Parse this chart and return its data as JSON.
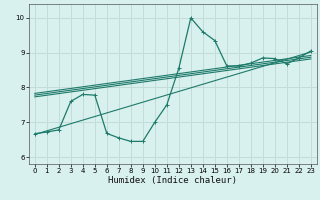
{
  "xlabel": "Humidex (Indice chaleur)",
  "ylabel": "",
  "bg_color": "#d8f0ee",
  "grid_color": "#c2dcd8",
  "line_color": "#1e7a6a",
  "xlim": [
    -0.5,
    23.5
  ],
  "ylim": [
    5.8,
    10.4
  ],
  "xticks": [
    0,
    1,
    2,
    3,
    4,
    5,
    6,
    7,
    8,
    9,
    10,
    11,
    12,
    13,
    14,
    15,
    16,
    17,
    18,
    19,
    20,
    21,
    22,
    23
  ],
  "yticks": [
    6,
    7,
    8,
    9,
    10
  ],
  "line1_x": [
    0,
    1,
    2,
    3,
    4,
    5,
    6,
    7,
    8,
    9,
    10,
    11,
    12,
    13,
    14,
    15,
    16,
    17,
    18,
    19,
    20,
    21,
    22,
    23
  ],
  "line1_y": [
    6.67,
    6.72,
    6.78,
    7.6,
    7.8,
    7.78,
    6.68,
    6.55,
    6.45,
    6.45,
    7.0,
    7.5,
    8.55,
    10.0,
    9.6,
    9.35,
    8.62,
    8.62,
    8.7,
    8.85,
    8.83,
    8.68,
    8.85,
    9.05
  ],
  "line2_x": [
    0,
    23
  ],
  "line2_y": [
    7.73,
    8.82
  ],
  "line3_x": [
    0,
    23
  ],
  "line3_y": [
    7.78,
    8.87
  ],
  "line4_x": [
    0,
    23
  ],
  "line4_y": [
    7.83,
    8.92
  ],
  "line5_x": [
    0,
    23
  ],
  "line5_y": [
    6.65,
    9.02
  ]
}
